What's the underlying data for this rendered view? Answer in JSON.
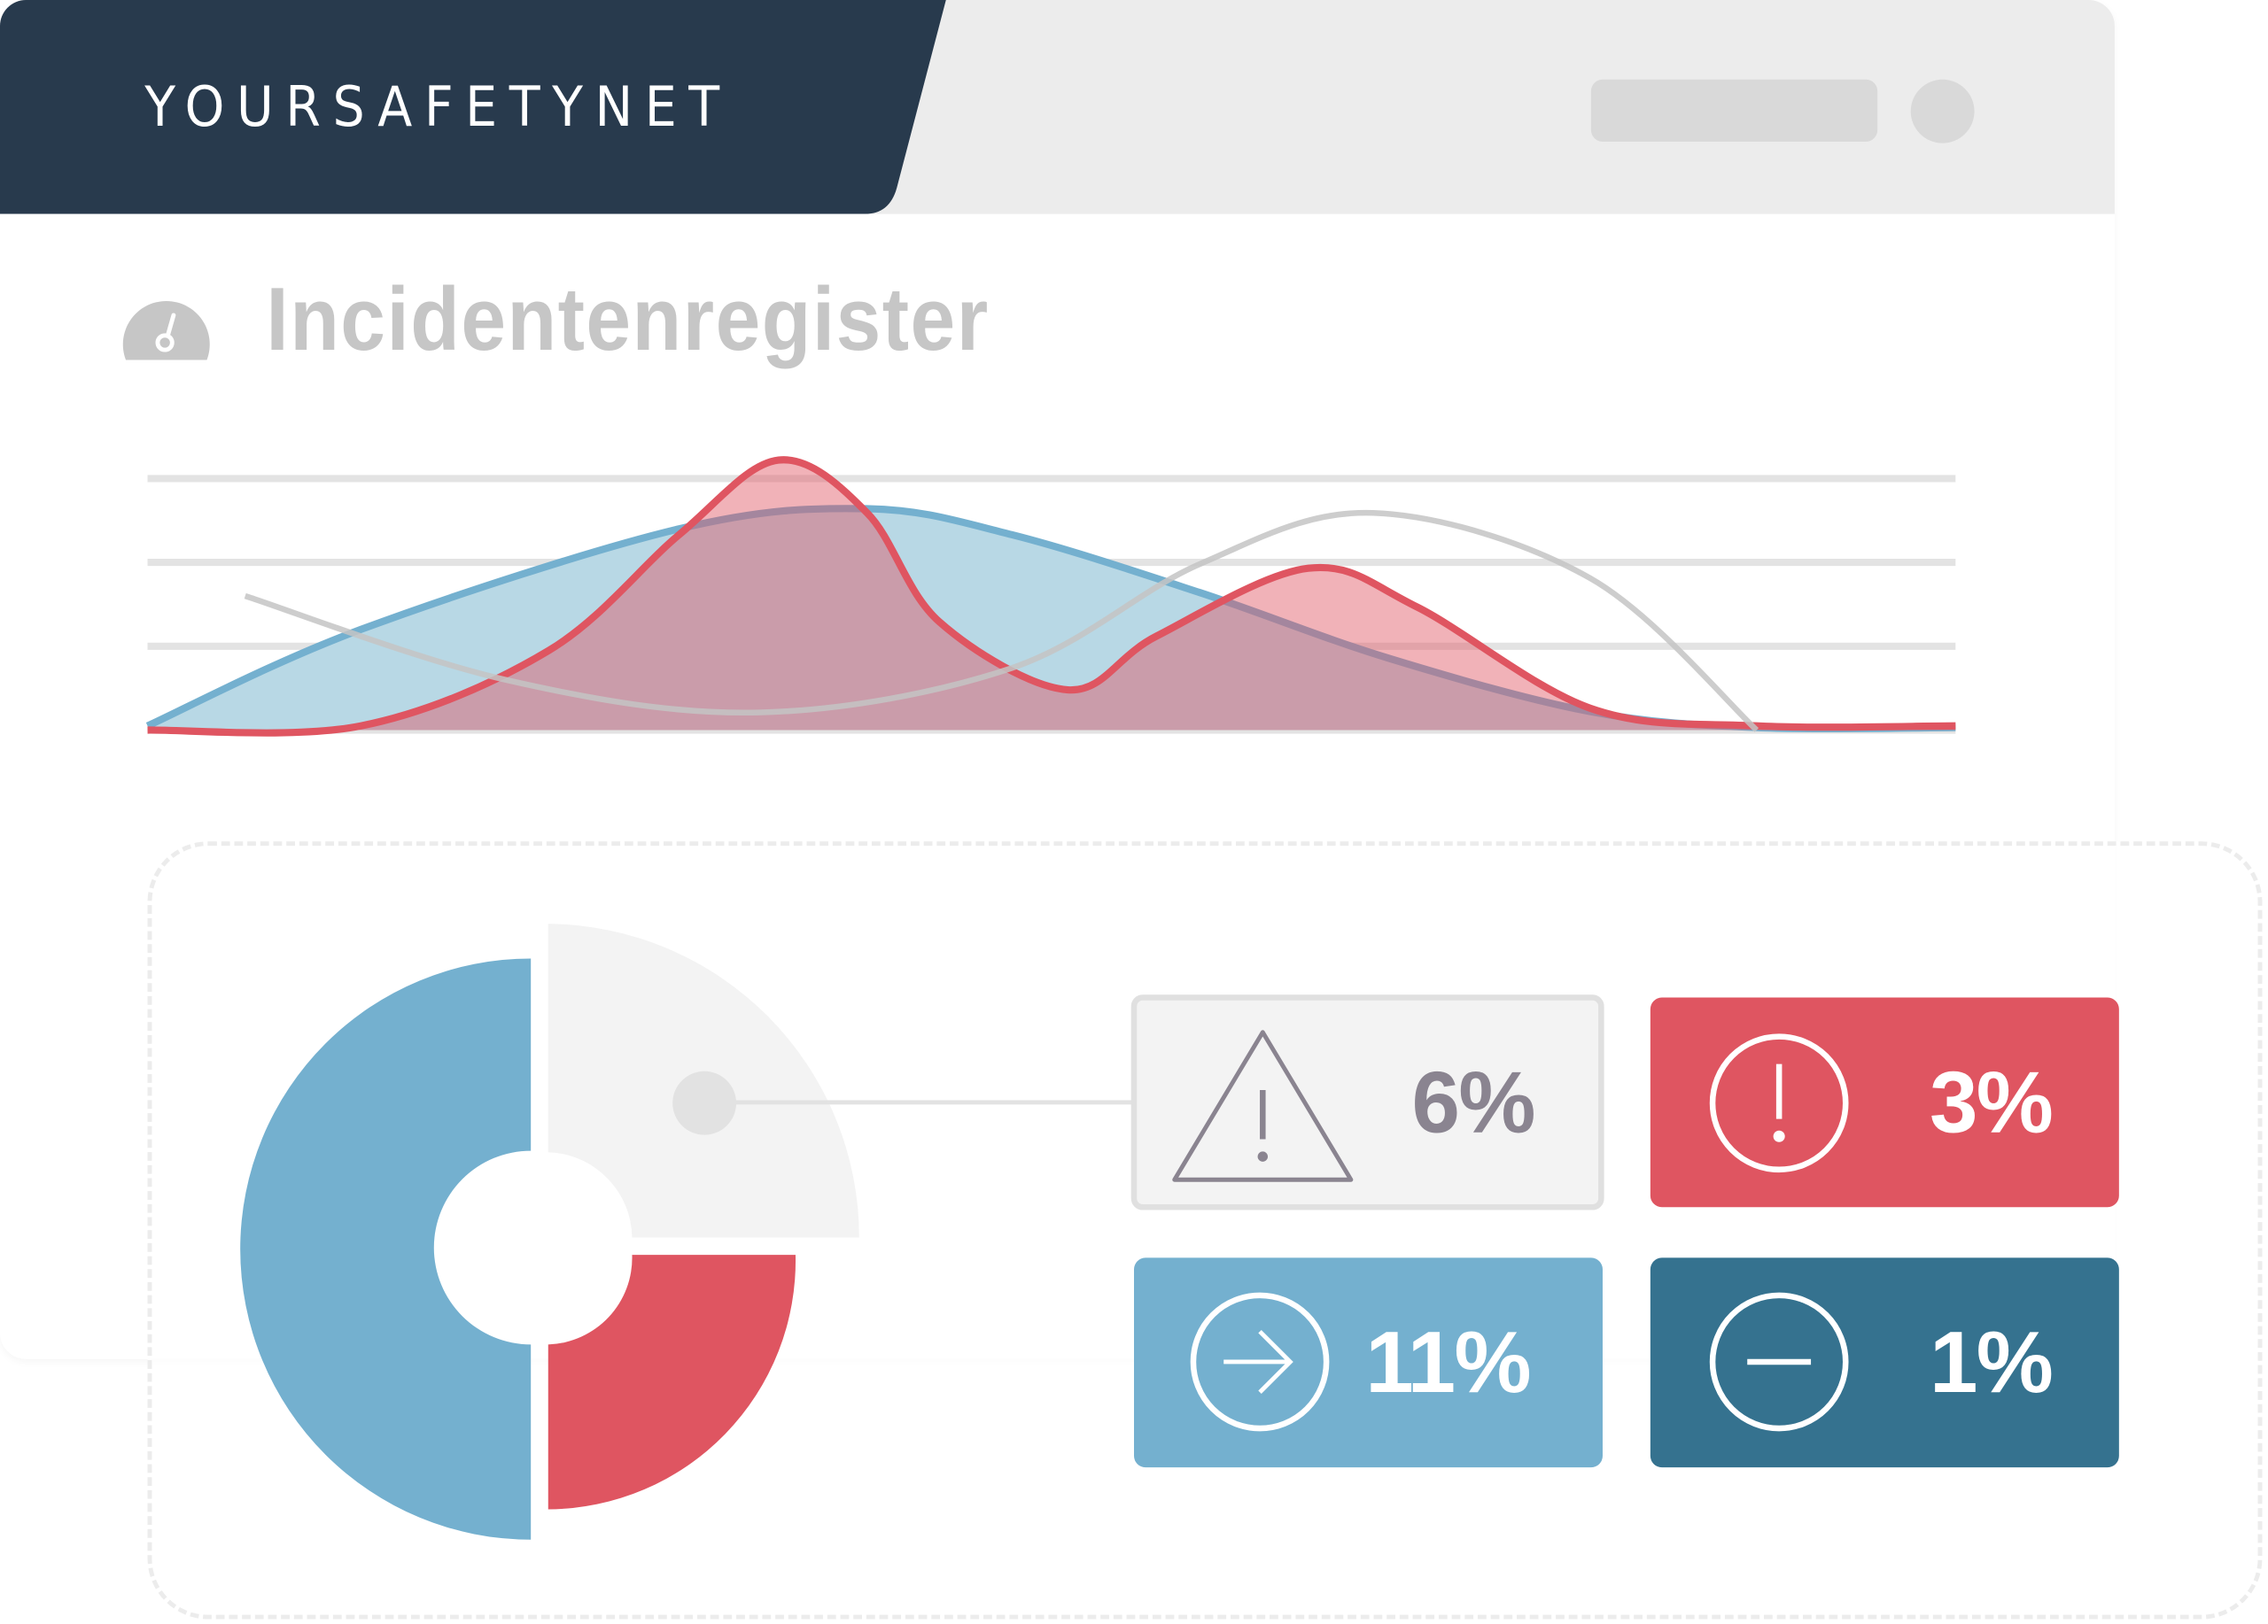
{
  "header": {
    "logo_text": "YOURSAFETYNET",
    "brand_color": "#283a4d",
    "search_pill": "search-placeholder",
    "profile_icon": "avatar-circle"
  },
  "page": {
    "title": "Incidentenregister",
    "title_icon": "speedometer-icon"
  },
  "chart_data": {
    "type": "area",
    "title": "",
    "xlabel": "",
    "ylabel": "",
    "grid": true,
    "xlim": [
      0,
      100
    ],
    "ylim": [
      0,
      3
    ],
    "series": [
      {
        "color": "#74b0cf",
        "fill": "#b8d8e5",
        "points": [
          [
            0,
            0.05
          ],
          [
            11.8,
            1.2
          ],
          [
            29.4,
            2.4
          ],
          [
            39.8,
            2.64
          ],
          [
            47.8,
            2.33
          ],
          [
            58.2,
            1.64
          ],
          [
            68.6,
            0.86
          ],
          [
            79.8,
            0.22
          ],
          [
            89,
            0.03
          ],
          [
            100,
            0.03
          ]
        ]
      },
      {
        "color": "#df5561",
        "fill": "rgba(223,85,97,0.45)",
        "points": [
          [
            0,
            0
          ],
          [
            11.8,
            0.05
          ],
          [
            22.2,
            0.95
          ],
          [
            29.4,
            2.33
          ],
          [
            34.9,
            3.22
          ],
          [
            39.8,
            2.59
          ],
          [
            43.8,
            1.29
          ],
          [
            50.9,
            0.48
          ],
          [
            55.8,
            1.12
          ],
          [
            64.2,
            1.93
          ],
          [
            70.2,
            1.47
          ],
          [
            79.8,
            0.26
          ],
          [
            89,
            0.05
          ],
          [
            100,
            0.05
          ]
        ]
      },
      {
        "color": "#c4c4c4",
        "fill": "none",
        "points": [
          [
            5.4,
            1.6
          ],
          [
            19.8,
            0.6
          ],
          [
            33.8,
            0.21
          ],
          [
            47.8,
            0.74
          ],
          [
            58.2,
            1.98
          ],
          [
            67.8,
            2.59
          ],
          [
            79.8,
            1.81
          ],
          [
            89,
            0
          ]
        ]
      }
    ]
  },
  "donut": {
    "segments": [
      {
        "color": "#74b0cf",
        "share": 50
      },
      {
        "color": "#f3f3f3",
        "share": 25
      },
      {
        "color": "#df5561",
        "share": 25
      }
    ]
  },
  "stats": [
    {
      "icon": "warning-triangle-icon",
      "value": "6%",
      "bg": "#f3f3f3",
      "fg": "#8a8490"
    },
    {
      "icon": "exclamation-circle-icon",
      "value": "3%",
      "bg": "#df5561",
      "fg": "#ffffff"
    },
    {
      "icon": "arrow-right-circle-icon",
      "value": "11%",
      "bg": "#74b0cf",
      "fg": "#ffffff"
    },
    {
      "icon": "minus-circle-icon",
      "value": "1%",
      "bg": "#35728f",
      "fg": "#ffffff"
    }
  ]
}
